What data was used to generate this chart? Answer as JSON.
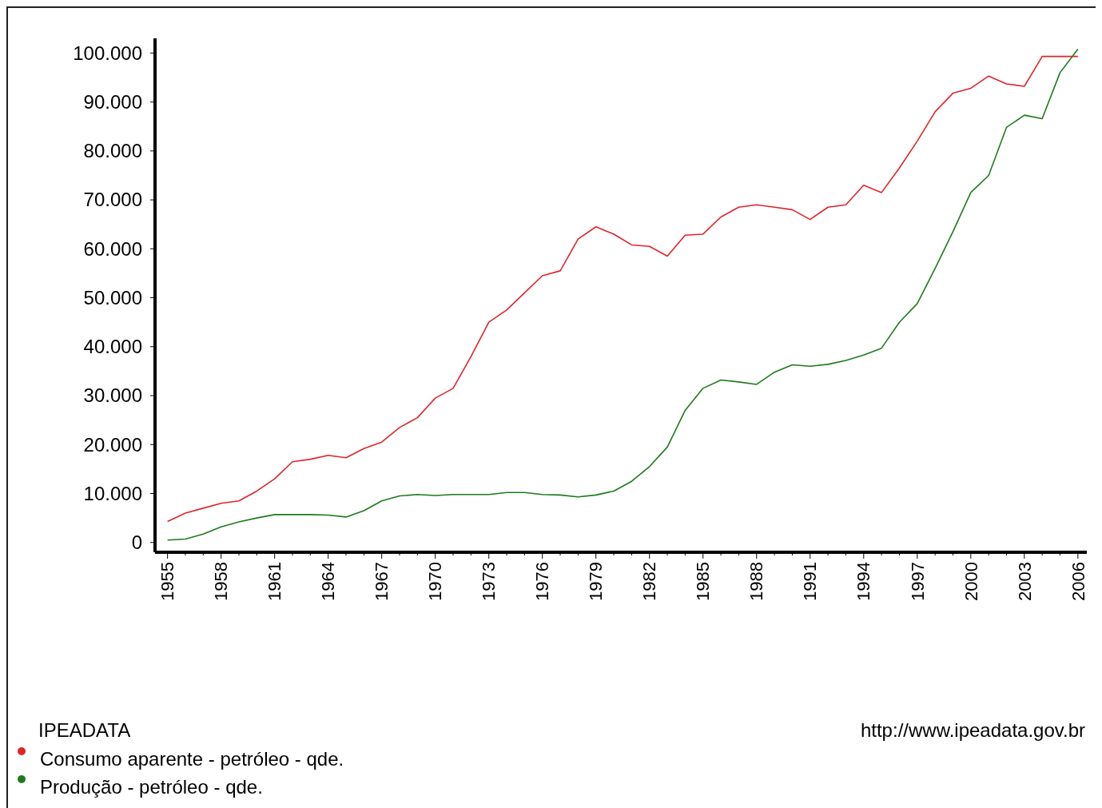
{
  "chart_data": {
    "type": "line",
    "categories": [
      "1955",
      null,
      null,
      "1958",
      null,
      null,
      "1961",
      null,
      null,
      "1964",
      null,
      null,
      "1967",
      null,
      null,
      "1970",
      null,
      null,
      "1973",
      null,
      null,
      "1976",
      null,
      null,
      "1979",
      null,
      null,
      "1982",
      null,
      null,
      "1985",
      null,
      null,
      "1988",
      null,
      null,
      "1991",
      null,
      null,
      "1994",
      null,
      null,
      "1997",
      null,
      null,
      "2000",
      null,
      null,
      "2003",
      null,
      null,
      "2006"
    ],
    "series": [
      {
        "name": "Consumo aparente - petróleo - qde.",
        "color": "#e0242a",
        "values": [
          4300,
          6000,
          7000,
          8000,
          8500,
          10500,
          13000,
          16500,
          17000,
          17800,
          17300,
          19200,
          20500,
          23500,
          25500,
          29500,
          31500,
          38000,
          45000,
          47500,
          51000,
          54500,
          55500,
          62000,
          64500,
          63000,
          60800,
          60500,
          58500,
          62800,
          63000,
          66500,
          68500,
          69000,
          68500,
          68000,
          66000,
          68500,
          69000,
          73000,
          71500,
          76500,
          82000,
          88000,
          91800,
          92800,
          95300,
          93700,
          93200,
          99300,
          99300,
          99300
        ]
      },
      {
        "name": "Produção - petróleo - qde.",
        "color": "#1e7a1e",
        "values": [
          500,
          700,
          1700,
          3200,
          4200,
          5000,
          5700,
          5700,
          5700,
          5600,
          5200,
          6500,
          8500,
          9500,
          9800,
          9600,
          9800,
          9800,
          9800,
          10200,
          10200,
          9800,
          9700,
          9300,
          9700,
          10500,
          12500,
          15500,
          19500,
          27000,
          31500,
          33200,
          32800,
          32300,
          34800,
          36300,
          36000,
          36400,
          37200,
          38300,
          39700,
          45000,
          48800,
          56000,
          63500,
          71500,
          75000,
          84800,
          87300,
          86600,
          96000,
          100800
        ]
      }
    ],
    "ylim": [
      -2000,
      103000
    ],
    "yticks": [
      0,
      {
        "value": 10000,
        "label": "10.000"
      },
      {
        "value": 20000,
        "label": "20.000"
      },
      {
        "value": 30000,
        "label": "30.000"
      },
      {
        "value": 40000,
        "label": "40.000"
      },
      {
        "value": 50000,
        "label": "50.000"
      },
      {
        "value": 60000,
        "label": "60.000"
      },
      {
        "value": 70000,
        "label": "70.000"
      },
      {
        "value": 80000,
        "label": "80.000"
      },
      {
        "value": 90000,
        "label": "90.000"
      },
      {
        "value": 100000,
        "label": "100.000"
      }
    ],
    "grid": false,
    "legend": "bottom left",
    "marker": "none",
    "line_style": "solid",
    "annotations": [
      "IPEADATA",
      "http://www.ipeadata.gov.br"
    ]
  }
}
